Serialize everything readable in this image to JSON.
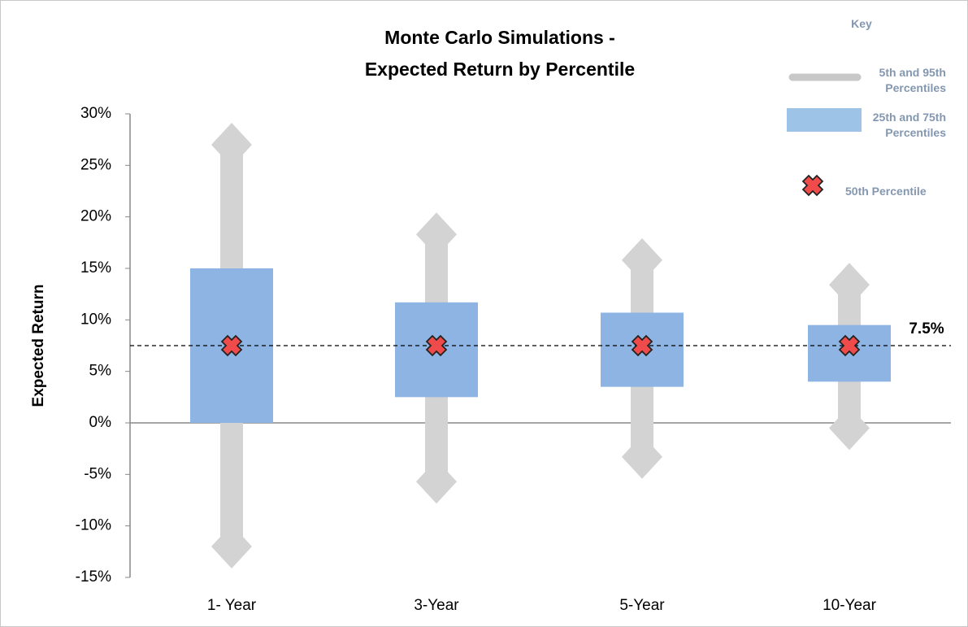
{
  "chart_data": {
    "type": "box",
    "title": "Monte Carlo Simulations -",
    "subtitle": "Expected Return by Percentile",
    "y_label": "Expected Return",
    "categories": [
      "1- Year",
      "3-Year",
      "5-Year",
      "10-Year"
    ],
    "whiskers": {
      "name": "5th and 95th Percentiles",
      "color": "#d3d3d3",
      "low": [
        -12,
        -5.7,
        -3.3,
        -0.5
      ],
      "high": [
        27,
        18.3,
        15.8,
        13.4
      ]
    },
    "boxes": {
      "name": "25th and 75th Percentiles",
      "color": "#8eb4e3",
      "q1": [
        0,
        2.5,
        3.5,
        4
      ],
      "q3": [
        15,
        11.7,
        10.7,
        9.5
      ]
    },
    "median": {
      "name": "50th Percentile",
      "color": "#f04b4b",
      "values": [
        7.5,
        7.5,
        7.5,
        7.5
      ]
    },
    "reference_line": {
      "value": 7.5,
      "label": "7.5%"
    },
    "legend_title": "Key",
    "ylim": [
      -15,
      30
    ],
    "yticks": [
      {
        "value": -15,
        "label": "-15%"
      },
      {
        "value": -10,
        "label": "-10%"
      },
      {
        "value": -5,
        "label": "-5%"
      },
      {
        "value": 0,
        "label": "0%"
      },
      {
        "value": 5,
        "label": "5%"
      },
      {
        "value": 10,
        "label": "10%"
      },
      {
        "value": 15,
        "label": "15%"
      },
      {
        "value": 20,
        "label": "20%"
      },
      {
        "value": 25,
        "label": "25%"
      },
      {
        "value": 30,
        "label": "30%"
      }
    ]
  }
}
